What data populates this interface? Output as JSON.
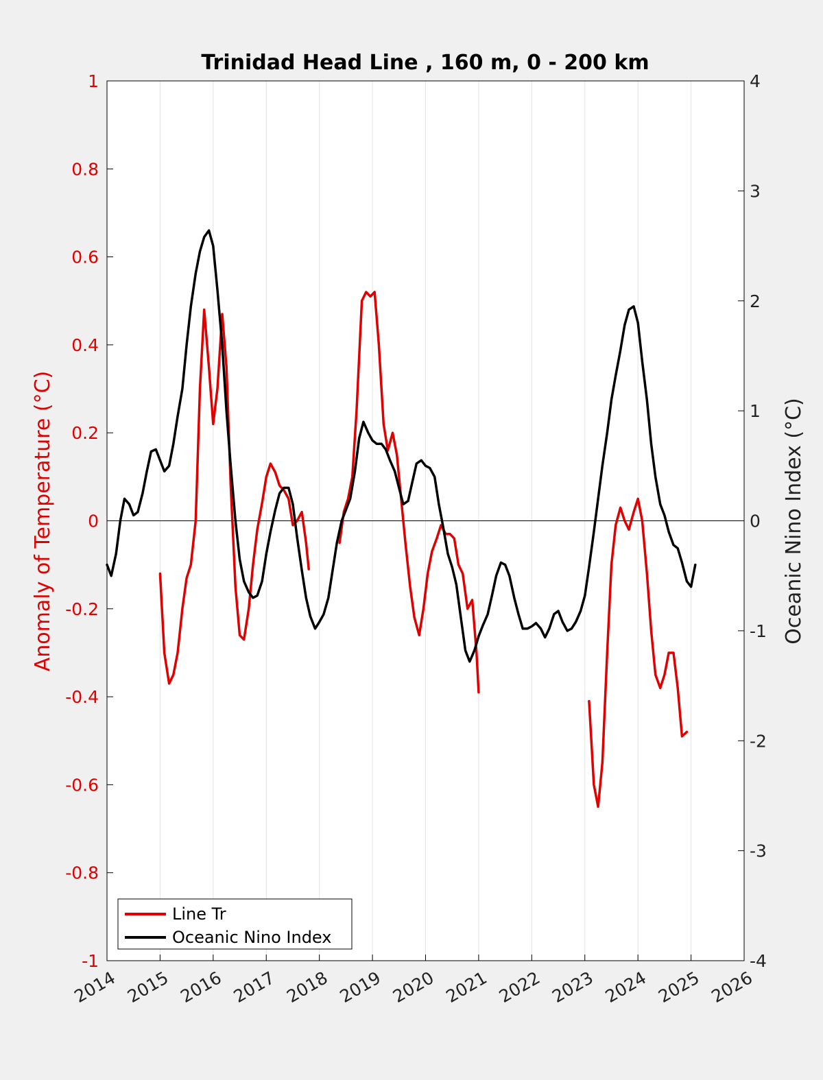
{
  "chart_data": {
    "type": "line",
    "title": "Trinidad Head Line , 160 m, 0 - 200 km",
    "ylabel_left": "Anomaly of Temperature (°C)",
    "ylabel_right": "Oceanic Nino Index (°C)",
    "xlim": [
      2014,
      2026
    ],
    "ylim_left": [
      -1,
      1
    ],
    "ylim_right": [
      -4,
      4
    ],
    "x_ticks": [
      "2014",
      "2015",
      "2016",
      "2017",
      "2018",
      "2019",
      "2020",
      "2021",
      "2022",
      "2023",
      "2024",
      "2025",
      "2026"
    ],
    "y_ticks_left": [
      "1",
      "0.8",
      "0.6",
      "0.4",
      "0.2",
      "0",
      "-0.2",
      "-0.4",
      "-0.6",
      "-0.8",
      "-1"
    ],
    "y_ticks_right": [
      "4",
      "3",
      "2",
      "1",
      "0",
      "-1",
      "-2",
      "-3",
      "-4"
    ],
    "grid": "vertical",
    "zero_line": true,
    "legend": {
      "position": "bottom-left",
      "entries": [
        "Line Tr",
        "Oceanic Nino Index"
      ]
    },
    "colors": {
      "Line Tr": "#e00000",
      "Oceanic Nino Index": "#000000",
      "left_axis": "#e00000"
    },
    "series": [
      {
        "name": "Line Tr",
        "axis": "left",
        "segments": [
          [
            [
              2015.0,
              -0.12
            ],
            [
              2015.08,
              -0.3
            ],
            [
              2015.17,
              -0.37
            ],
            [
              2015.25,
              -0.35
            ],
            [
              2015.33,
              -0.3
            ],
            [
              2015.42,
              -0.2
            ],
            [
              2015.5,
              -0.13
            ],
            [
              2015.58,
              -0.1
            ],
            [
              2015.67,
              0.0
            ],
            [
              2015.75,
              0.3
            ],
            [
              2015.83,
              0.48
            ],
            [
              2015.92,
              0.35
            ],
            [
              2016.0,
              0.22
            ],
            [
              2016.08,
              0.3
            ],
            [
              2016.17,
              0.47
            ],
            [
              2016.25,
              0.35
            ],
            [
              2016.33,
              0.08
            ],
            [
              2016.42,
              -0.15
            ],
            [
              2016.5,
              -0.26
            ],
            [
              2016.58,
              -0.27
            ],
            [
              2016.67,
              -0.2
            ],
            [
              2016.75,
              -0.1
            ],
            [
              2016.83,
              -0.02
            ],
            [
              2016.92,
              0.04
            ],
            [
              2017.0,
              0.1
            ],
            [
              2017.08,
              0.13
            ],
            [
              2017.17,
              0.11
            ],
            [
              2017.25,
              0.08
            ],
            [
              2017.33,
              0.07
            ],
            [
              2017.42,
              0.05
            ],
            [
              2017.5,
              -0.01
            ],
            [
              2017.58,
              0.0
            ],
            [
              2017.67,
              0.02
            ],
            [
              2017.75,
              -0.05
            ],
            [
              2017.8,
              -0.11
            ]
          ],
          [
            [
              2018.38,
              -0.05
            ],
            [
              2018.46,
              0.02
            ],
            [
              2018.54,
              0.05
            ],
            [
              2018.62,
              0.1
            ],
            [
              2018.7,
              0.25
            ],
            [
              2018.8,
              0.5
            ],
            [
              2018.88,
              0.52
            ],
            [
              2018.96,
              0.51
            ],
            [
              2019.04,
              0.52
            ],
            [
              2019.12,
              0.4
            ],
            [
              2019.21,
              0.22
            ],
            [
              2019.29,
              0.16
            ],
            [
              2019.38,
              0.2
            ],
            [
              2019.46,
              0.15
            ],
            [
              2019.54,
              0.05
            ],
            [
              2019.62,
              -0.05
            ],
            [
              2019.71,
              -0.15
            ],
            [
              2019.79,
              -0.22
            ],
            [
              2019.88,
              -0.26
            ],
            [
              2019.96,
              -0.2
            ],
            [
              2020.04,
              -0.12
            ],
            [
              2020.12,
              -0.07
            ],
            [
              2020.21,
              -0.04
            ],
            [
              2020.29,
              -0.01
            ],
            [
              2020.38,
              -0.03
            ],
            [
              2020.46,
              -0.03
            ],
            [
              2020.54,
              -0.04
            ],
            [
              2020.62,
              -0.1
            ],
            [
              2020.7,
              -0.12
            ],
            [
              2020.79,
              -0.2
            ],
            [
              2020.88,
              -0.18
            ],
            [
              2020.96,
              -0.3
            ],
            [
              2021.0,
              -0.39
            ]
          ],
          [
            [
              2023.08,
              -0.41
            ],
            [
              2023.17,
              -0.6
            ],
            [
              2023.25,
              -0.65
            ],
            [
              2023.33,
              -0.55
            ],
            [
              2023.42,
              -0.3
            ],
            [
              2023.5,
              -0.1
            ],
            [
              2023.58,
              -0.01
            ],
            [
              2023.67,
              0.03
            ],
            [
              2023.75,
              0.0
            ],
            [
              2023.83,
              -0.02
            ],
            [
              2023.92,
              0.02
            ],
            [
              2024.0,
              0.05
            ],
            [
              2024.08,
              0.0
            ],
            [
              2024.17,
              -0.12
            ],
            [
              2024.25,
              -0.25
            ],
            [
              2024.33,
              -0.35
            ],
            [
              2024.42,
              -0.38
            ],
            [
              2024.5,
              -0.35
            ],
            [
              2024.58,
              -0.3
            ],
            [
              2024.67,
              -0.3
            ],
            [
              2024.75,
              -0.38
            ],
            [
              2024.83,
              -0.49
            ],
            [
              2024.92,
              -0.48
            ]
          ]
        ]
      },
      {
        "name": "Oceanic Nino Index",
        "axis": "right",
        "points": [
          [
            2014.0,
            -0.4
          ],
          [
            2014.08,
            -0.5
          ],
          [
            2014.17,
            -0.3
          ],
          [
            2014.25,
            0.0
          ],
          [
            2014.33,
            0.2
          ],
          [
            2014.42,
            0.15
          ],
          [
            2014.5,
            0.05
          ],
          [
            2014.58,
            0.08
          ],
          [
            2014.67,
            0.25
          ],
          [
            2014.75,
            0.45
          ],
          [
            2014.83,
            0.63
          ],
          [
            2014.92,
            0.65
          ],
          [
            2015.0,
            0.55
          ],
          [
            2015.08,
            0.45
          ],
          [
            2015.17,
            0.5
          ],
          [
            2015.25,
            0.7
          ],
          [
            2015.33,
            0.95
          ],
          [
            2015.42,
            1.2
          ],
          [
            2015.5,
            1.6
          ],
          [
            2015.58,
            1.95
          ],
          [
            2015.67,
            2.25
          ],
          [
            2015.75,
            2.45
          ],
          [
            2015.83,
            2.58
          ],
          [
            2015.92,
            2.64
          ],
          [
            2016.0,
            2.5
          ],
          [
            2016.08,
            2.1
          ],
          [
            2016.17,
            1.6
          ],
          [
            2016.25,
            1.0
          ],
          [
            2016.33,
            0.5
          ],
          [
            2016.42,
            0.0
          ],
          [
            2016.5,
            -0.35
          ],
          [
            2016.58,
            -0.55
          ],
          [
            2016.67,
            -0.65
          ],
          [
            2016.75,
            -0.7
          ],
          [
            2016.83,
            -0.68
          ],
          [
            2016.92,
            -0.55
          ],
          [
            2017.0,
            -0.3
          ],
          [
            2017.08,
            -0.1
          ],
          [
            2017.17,
            0.1
          ],
          [
            2017.25,
            0.25
          ],
          [
            2017.33,
            0.3
          ],
          [
            2017.42,
            0.3
          ],
          [
            2017.5,
            0.15
          ],
          [
            2017.58,
            -0.15
          ],
          [
            2017.67,
            -0.45
          ],
          [
            2017.75,
            -0.7
          ],
          [
            2017.83,
            -0.87
          ],
          [
            2017.92,
            -0.98
          ],
          [
            2018.0,
            -0.92
          ],
          [
            2018.08,
            -0.85
          ],
          [
            2018.17,
            -0.7
          ],
          [
            2018.25,
            -0.45
          ],
          [
            2018.33,
            -0.2
          ],
          [
            2018.42,
            0.0
          ],
          [
            2018.5,
            0.1
          ],
          [
            2018.58,
            0.2
          ],
          [
            2018.67,
            0.45
          ],
          [
            2018.75,
            0.75
          ],
          [
            2018.83,
            0.9
          ],
          [
            2018.92,
            0.8
          ],
          [
            2019.0,
            0.73
          ],
          [
            2019.08,
            0.7
          ],
          [
            2019.17,
            0.7
          ],
          [
            2019.25,
            0.65
          ],
          [
            2019.33,
            0.55
          ],
          [
            2019.42,
            0.45
          ],
          [
            2019.5,
            0.3
          ],
          [
            2019.58,
            0.15
          ],
          [
            2019.67,
            0.18
          ],
          [
            2019.75,
            0.35
          ],
          [
            2019.83,
            0.52
          ],
          [
            2019.92,
            0.55
          ],
          [
            2020.0,
            0.5
          ],
          [
            2020.08,
            0.48
          ],
          [
            2020.17,
            0.4
          ],
          [
            2020.25,
            0.15
          ],
          [
            2020.33,
            -0.05
          ],
          [
            2020.42,
            -0.3
          ],
          [
            2020.5,
            -0.42
          ],
          [
            2020.58,
            -0.58
          ],
          [
            2020.67,
            -0.9
          ],
          [
            2020.75,
            -1.18
          ],
          [
            2020.83,
            -1.28
          ],
          [
            2020.92,
            -1.18
          ],
          [
            2021.0,
            -1.05
          ],
          [
            2021.08,
            -0.95
          ],
          [
            2021.17,
            -0.85
          ],
          [
            2021.25,
            -0.68
          ],
          [
            2021.33,
            -0.5
          ],
          [
            2021.42,
            -0.38
          ],
          [
            2021.5,
            -0.4
          ],
          [
            2021.58,
            -0.5
          ],
          [
            2021.67,
            -0.7
          ],
          [
            2021.75,
            -0.85
          ],
          [
            2021.83,
            -0.98
          ],
          [
            2021.92,
            -0.98
          ],
          [
            2022.0,
            -0.96
          ],
          [
            2022.08,
            -0.93
          ],
          [
            2022.17,
            -0.98
          ],
          [
            2022.25,
            -1.06
          ],
          [
            2022.33,
            -0.98
          ],
          [
            2022.42,
            -0.85
          ],
          [
            2022.5,
            -0.82
          ],
          [
            2022.58,
            -0.92
          ],
          [
            2022.67,
            -1.0
          ],
          [
            2022.75,
            -0.98
          ],
          [
            2022.83,
            -0.92
          ],
          [
            2022.92,
            -0.82
          ],
          [
            2023.0,
            -0.68
          ],
          [
            2023.08,
            -0.42
          ],
          [
            2023.17,
            -0.1
          ],
          [
            2023.25,
            0.2
          ],
          [
            2023.33,
            0.5
          ],
          [
            2023.42,
            0.8
          ],
          [
            2023.5,
            1.1
          ],
          [
            2023.58,
            1.32
          ],
          [
            2023.67,
            1.55
          ],
          [
            2023.75,
            1.78
          ],
          [
            2023.83,
            1.92
          ],
          [
            2023.92,
            1.95
          ],
          [
            2024.0,
            1.8
          ],
          [
            2024.08,
            1.45
          ],
          [
            2024.17,
            1.1
          ],
          [
            2024.25,
            0.7
          ],
          [
            2024.33,
            0.4
          ],
          [
            2024.42,
            0.15
          ],
          [
            2024.5,
            0.05
          ],
          [
            2024.58,
            -0.1
          ],
          [
            2024.67,
            -0.22
          ],
          [
            2024.75,
            -0.25
          ],
          [
            2024.83,
            -0.38
          ],
          [
            2024.92,
            -0.55
          ],
          [
            2025.0,
            -0.6
          ],
          [
            2025.08,
            -0.4
          ]
        ]
      }
    ]
  }
}
